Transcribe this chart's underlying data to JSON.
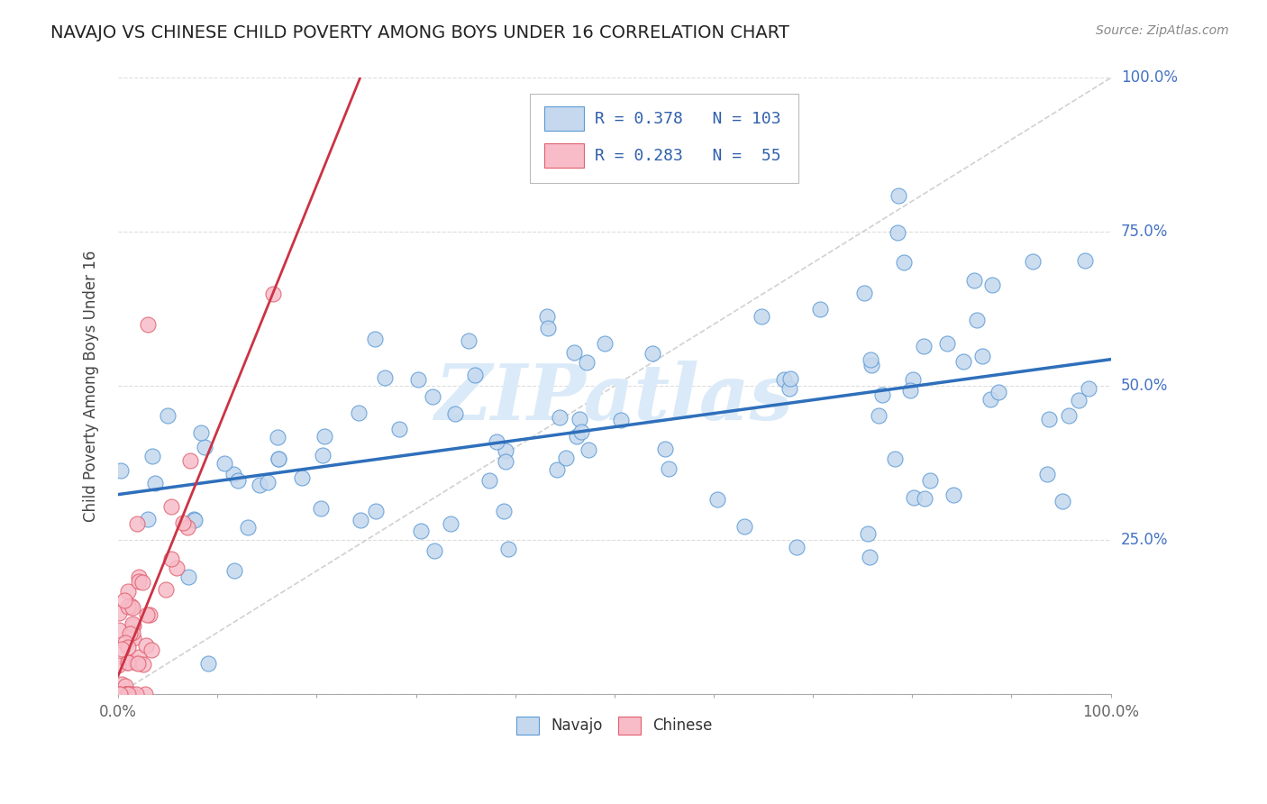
{
  "title": "NAVAJO VS CHINESE CHILD POVERTY AMONG BOYS UNDER 16 CORRELATION CHART",
  "source": "Source: ZipAtlas.com",
  "ylabel": "Child Poverty Among Boys Under 16",
  "navajo_R": 0.378,
  "navajo_N": 103,
  "chinese_R": 0.283,
  "chinese_N": 55,
  "navajo_color": "#c5d8ee",
  "chinese_color": "#f7bcc8",
  "navajo_edge_color": "#5b9bd5",
  "chinese_edge_color": "#e06070",
  "navajo_line_color": "#2e6fbb",
  "chinese_line_color": "#cc3344",
  "legend_text_color": "#3060aa",
  "watermark_color": "#daeaf8",
  "background_color": "#ffffff",
  "grid_color": "#dddddd",
  "title_color": "#222222",
  "axis_label_color": "#444444",
  "right_tick_color": "#4472c4",
  "x_tick_color": "#666666"
}
